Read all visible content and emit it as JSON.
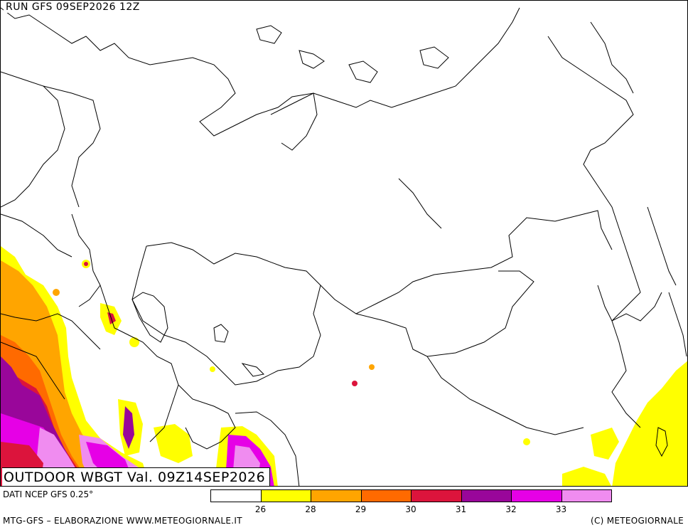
{
  "header": {
    "run_label": "RUN GFS 09SEP2026 12Z"
  },
  "title": "OUTDOOR WBGT Val. 09Z14SEP2026",
  "source": "DATI NCEP GFS 0.25°",
  "footer": {
    "left": "MTG-GFS – ELABORAZIONE WWW.METEOGIORNALE.IT",
    "right": "(C) METEOGIORNALE"
  },
  "legend": {
    "colors": [
      "#ffffff",
      "#ffff00",
      "#ffa500",
      "#ff6a00",
      "#dc143c",
      "#99069a",
      "#e600e6",
      "#f08cf0"
    ],
    "ticks": [
      "26",
      "28",
      "29",
      "30",
      "31",
      "32",
      "33"
    ]
  },
  "map_colors": {
    "coast": "#000000",
    "c26": "#ffff00",
    "c28": "#ffa500",
    "c29": "#ff6a00",
    "c30": "#dc143c",
    "c31": "#99069a",
    "c32": "#e600e6",
    "c33": "#f08cf0"
  }
}
